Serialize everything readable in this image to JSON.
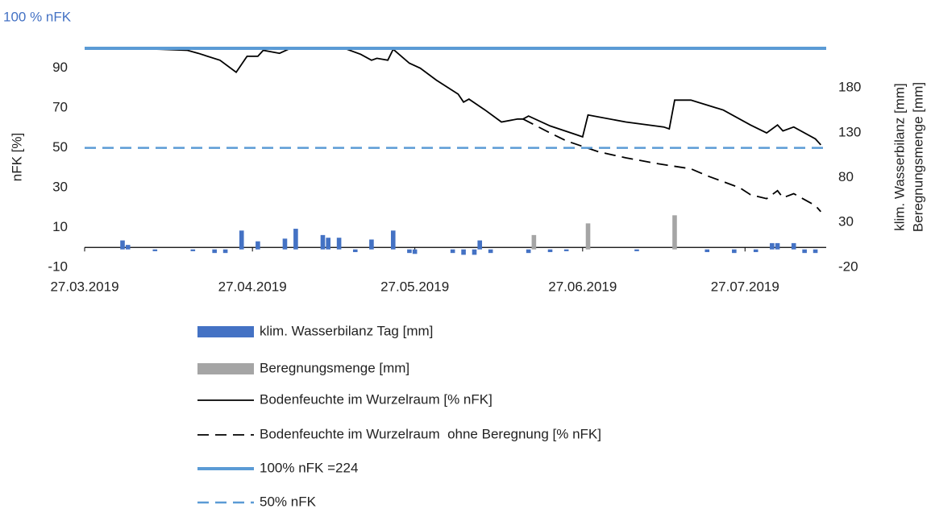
{
  "chart_data": {
    "type": "combo",
    "annotation": "100 % nFK",
    "ylabel": "nFK [%]",
    "y2label": [
      "klim. Wasserbilanz [mm]",
      "Beregnungsmenge [mm]"
    ],
    "xlim": [
      "27.03.2019",
      "11.08.2019"
    ],
    "xticks": [
      "27.03.2019",
      "27.04.2019",
      "27.05.2019",
      "27.06.2019",
      "27.07.2019"
    ],
    "ylim": [
      -10,
      100
    ],
    "yticks": [
      -10,
      10,
      30,
      50,
      70,
      90
    ],
    "y2lim": [
      -20,
      224
    ],
    "y2ticks": [
      -20,
      30,
      80,
      130,
      180
    ],
    "legend": "bottom",
    "series": [
      {
        "name": "klim. Wasserbilanz Tag [mm]",
        "kind": "bar",
        "axis": "y2",
        "color": "#4472c4",
        "x": [
          "03.04.2019",
          "04.04.2019",
          "09.04.2019",
          "16.04.2019",
          "20.04.2019",
          "22.04.2019",
          "25.04.2019",
          "28.04.2019",
          "03.05.2019",
          "05.05.2019",
          "10.05.2019",
          "11.05.2019",
          "13.05.2019",
          "16.05.2019",
          "19.05.2019",
          "23.05.2019",
          "26.05.2019",
          "27.05.2019",
          "03.06.2019",
          "05.06.2019",
          "07.06.2019",
          "08.06.2019",
          "10.06.2019",
          "17.06.2019",
          "21.06.2019",
          "24.06.2019",
          "07.07.2019",
          "20.07.2019",
          "25.07.2019",
          "29.07.2019",
          "01.08.2019",
          "02.08.2019",
          "05.08.2019",
          "07.08.2019",
          "09.08.2019"
        ],
        "values": [
          10,
          5,
          -2,
          -2,
          -4,
          -4,
          21,
          9,
          12,
          23,
          16,
          13,
          13,
          -3,
          11,
          21,
          -4,
          -5,
          -4,
          -6,
          -6,
          10,
          -4,
          -4,
          -3,
          -2,
          -2,
          -3,
          -4,
          -3,
          7,
          7,
          7,
          -4,
          -4
        ]
      },
      {
        "name": "Beregnungsmenge [mm]",
        "kind": "bar",
        "axis": "y2",
        "color": "#a5a5a5",
        "x": [
          "18.06.2019",
          "28.06.2019",
          "14.07.2019"
        ],
        "values": [
          16,
          29,
          38
        ]
      },
      {
        "name": "Bodenfeuchte im Wurzelraum [% nFK]",
        "kind": "line",
        "color": "#000000",
        "dash": "solid",
        "x": [
          "03.04.2019",
          "10.04.2019",
          "15.04.2019",
          "17.04.2019",
          "21.04.2019",
          "24.04.2019",
          "26.04.2019",
          "28.04.2019",
          "29.04.2019",
          "02.05.2019",
          "04.05.2019",
          "11.05.2019",
          "14.05.2019",
          "17.05.2019",
          "19.05.2019",
          "20.05.2019",
          "22.05.2019",
          "23.05.2019",
          "26.05.2019",
          "28.05.2019",
          "31.05.2019",
          "04.06.2019",
          "05.06.2019",
          "06.06.2019",
          "09.06.2019",
          "12.06.2019",
          "15.06.2019",
          "16.06.2019",
          "17.06.2019",
          "21.06.2019",
          "26.06.2019",
          "27.06.2019",
          "28.06.2019",
          "05.07.2019",
          "12.07.2019",
          "13.07.2019",
          "14.07.2019",
          "17.07.2019",
          "20.07.2019",
          "23.07.2019",
          "28.07.2019",
          "31.07.2019",
          "02.08.2019",
          "03.08.2019",
          "05.08.2019",
          "09.08.2019",
          "10.08.2019"
        ],
        "values": [
          100,
          99.5,
          99,
          97.5,
          94,
          88,
          96,
          96,
          99,
          97.5,
          100,
          100,
          100,
          97,
          94,
          95,
          94,
          99.5,
          92.5,
          90,
          84,
          77,
          73,
          74.5,
          69,
          63,
          64.5,
          64.5,
          66,
          61,
          56.5,
          55.5,
          66.5,
          63,
          60.5,
          59.5,
          74,
          74,
          71.5,
          69,
          61.5,
          57.5,
          61.5,
          58.5,
          60.5,
          54.5,
          51.5
        ]
      },
      {
        "name": "Bodenfeuchte im Wurzelraum  ohne Beregnung [% nFK]",
        "kind": "line",
        "color": "#000000",
        "dash": "dashed",
        "x": [
          "16.06.2019",
          "21.06.2019",
          "24.06.2019",
          "30.06.2019",
          "05.07.2019",
          "11.07.2019",
          "17.07.2019",
          "20.07.2019",
          "26.07.2019",
          "28.07.2019",
          "31.07.2019",
          "02.08.2019",
          "03.08.2019",
          "05.08.2019",
          "09.08.2019",
          "10.08.2019"
        ],
        "values": [
          64.5,
          57.5,
          53.5,
          48,
          45,
          42,
          39.5,
          36,
          30,
          26.5,
          24.5,
          28.5,
          25,
          27,
          21,
          18
        ]
      },
      {
        "name": "100% nFK =224",
        "kind": "hline",
        "color": "#5b9bd5",
        "dash": "solid",
        "value": 100
      },
      {
        "name": "50% nFK",
        "kind": "hline",
        "color": "#5b9bd5",
        "dash": "dashed",
        "value": 50
      }
    ]
  }
}
